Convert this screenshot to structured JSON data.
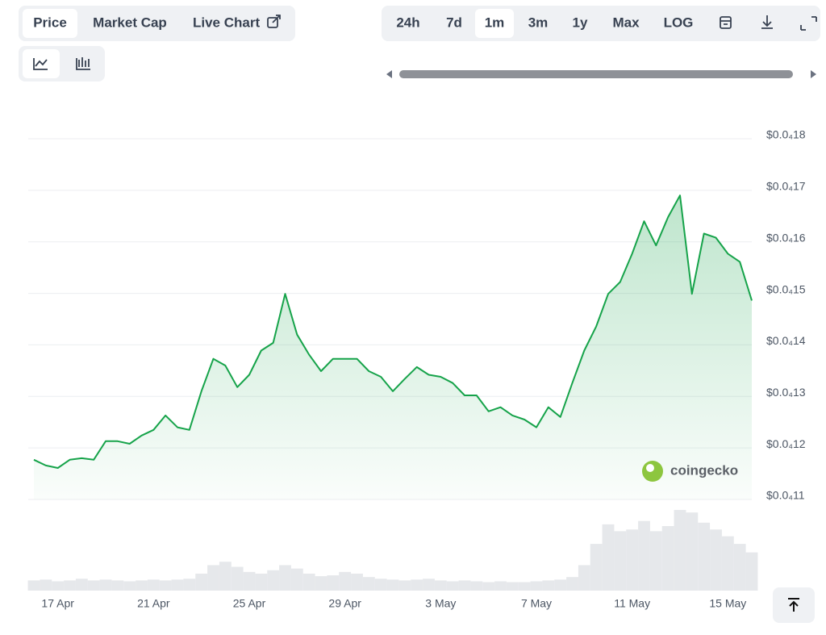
{
  "ui": {
    "tabs": [
      "Price",
      "Market Cap",
      "Live Chart"
    ],
    "ranges": [
      "24h",
      "7d",
      "1m",
      "3m",
      "1y",
      "Max",
      "LOG"
    ],
    "watermark": "coingecko"
  },
  "chart_data": {
    "type": "line",
    "color": "#16a34a",
    "categories": [
      null,
      null,
      "17 Apr",
      null,
      null,
      null,
      null,
      null,
      null,
      null,
      "21 Apr",
      null,
      null,
      null,
      null,
      null,
      null,
      null,
      "25 Apr",
      null,
      null,
      null,
      null,
      null,
      null,
      null,
      "29 Apr",
      null,
      null,
      null,
      null,
      null,
      null,
      null,
      "3 May",
      null,
      null,
      null,
      null,
      null,
      null,
      null,
      "7 May",
      null,
      null,
      null,
      null,
      null,
      null,
      null,
      "11 May",
      null,
      null,
      null,
      null,
      null,
      null,
      null,
      "15 May",
      null,
      null
    ],
    "values": [
      1.177e-05,
      1.166e-05,
      1.161e-05,
      1.177e-05,
      1.18e-05,
      1.177e-05,
      1.213e-05,
      1.213e-05,
      1.208e-05,
      1.224e-05,
      1.235e-05,
      1.263e-05,
      1.24e-05,
      1.235e-05,
      1.31e-05,
      1.373e-05,
      1.36e-05,
      1.318e-05,
      1.342e-05,
      1.389e-05,
      1.404e-05,
      1.499e-05,
      1.42e-05,
      1.381e-05,
      1.349e-05,
      1.373e-05,
      1.373e-05,
      1.373e-05,
      1.349e-05,
      1.338e-05,
      1.31e-05,
      1.334e-05,
      1.357e-05,
      1.342e-05,
      1.338e-05,
      1.326e-05,
      1.302e-05,
      1.302e-05,
      1.271e-05,
      1.279e-05,
      1.263e-05,
      1.255e-05,
      1.24e-05,
      1.279e-05,
      1.26e-05,
      1.326e-05,
      1.389e-05,
      1.436e-05,
      1.499e-05,
      1.522e-05,
      1.577e-05,
      1.64e-05,
      1.593e-05,
      1.648e-05,
      1.69e-05,
      1.499e-05,
      1.616e-05,
      1.608e-05,
      1.577e-05,
      1.561e-05,
      1.486e-05
    ],
    "volume": {
      "color": "#e6e8eb",
      "values": [
        12,
        13,
        11,
        12,
        14,
        12,
        13,
        12,
        11,
        12,
        13,
        12,
        13,
        14,
        20,
        30,
        34,
        28,
        22,
        20,
        24,
        30,
        26,
        20,
        17,
        18,
        22,
        20,
        16,
        14,
        13,
        12,
        13,
        14,
        12,
        11,
        12,
        11,
        10,
        11,
        10,
        10,
        11,
        12,
        13,
        16,
        30,
        55,
        78,
        70,
        72,
        82,
        70,
        76,
        95,
        92,
        80,
        72,
        64,
        55,
        45
      ]
    },
    "ylim": [
      1.1e-05,
      1.8e-05
    ],
    "yticks": [
      {
        "value": 1.1e-05,
        "label": "$0.0₄11"
      },
      {
        "value": 1.2e-05,
        "label": "$0.0₄12"
      },
      {
        "value": 1.3e-05,
        "label": "$0.0₄13"
      },
      {
        "value": 1.4e-05,
        "label": "$0.0₄14"
      },
      {
        "value": 1.5e-05,
        "label": "$0.0₄15"
      },
      {
        "value": 1.6e-05,
        "label": "$0.0₄16"
      },
      {
        "value": 1.7e-05,
        "label": "$0.0₄17"
      },
      {
        "value": 1.8e-05,
        "label": "$0.0₄18"
      }
    ],
    "grid": true
  }
}
